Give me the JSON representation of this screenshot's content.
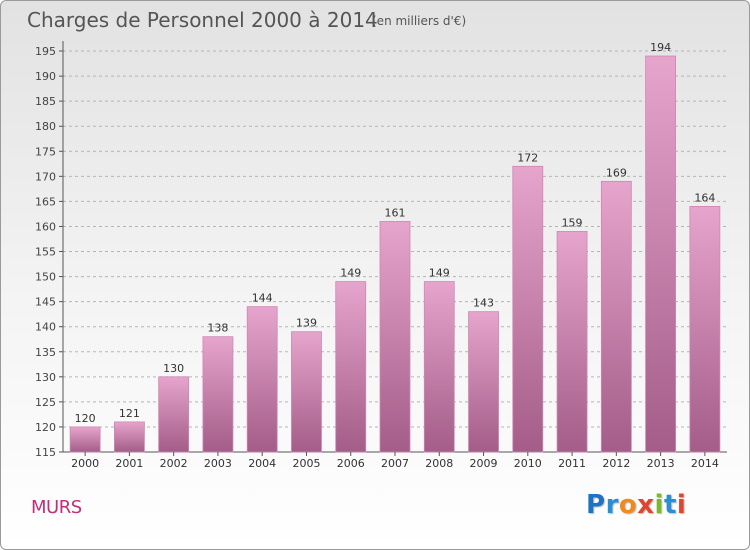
{
  "header": {
    "title": "Charges de Personnel 2000 à 2014",
    "subtitle": "(en milliers d'€)"
  },
  "footer": {
    "commune": "MURS",
    "logo_letters": [
      "P",
      "r",
      "o",
      "x",
      "i",
      "t",
      "i"
    ]
  },
  "colors": {
    "bar_light": "#e6a5cc",
    "bar_dark": "#a35d88",
    "commune_text": "#c0307a"
  },
  "chart_data": {
    "type": "bar",
    "categories": [
      "2000",
      "2001",
      "2002",
      "2003",
      "2004",
      "2005",
      "2006",
      "2007",
      "2008",
      "2009",
      "2010",
      "2011",
      "2012",
      "2013",
      "2014"
    ],
    "values": [
      120,
      121,
      130,
      138,
      144,
      139,
      149,
      161,
      149,
      143,
      172,
      159,
      169,
      194,
      164
    ],
    "title": "Charges de Personnel 2000 à 2014",
    "subtitle": "(en milliers d'€)",
    "ylim": [
      115,
      197
    ],
    "yticks": [
      115,
      120,
      125,
      130,
      135,
      140,
      145,
      150,
      155,
      160,
      165,
      170,
      175,
      180,
      185,
      190,
      195
    ],
    "grid": true,
    "data_labels": true
  }
}
